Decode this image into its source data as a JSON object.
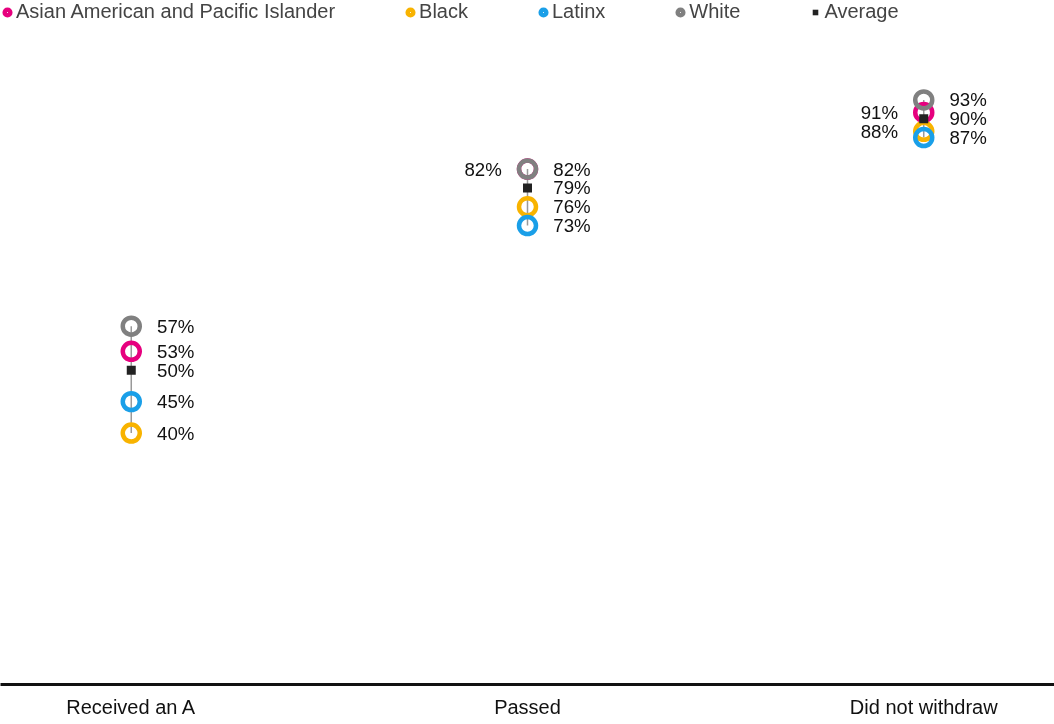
{
  "chart_data": {
    "type": "scatter",
    "categories": [
      "Received an A",
      "Passed",
      "Did not withdraw"
    ],
    "marker": "circle",
    "legend": "top",
    "grid": false,
    "tick_labels": "x",
    "series": [
      {
        "name": "Asian American and Pacific Islander",
        "color": "#e6007e",
        "values": [
          53,
          82,
          91
        ],
        "value_labels": [
          "53%",
          "82%",
          "91%"
        ]
      },
      {
        "name": "Black",
        "color": "#f8b300",
        "values": [
          40,
          76,
          88
        ],
        "value_labels": [
          "40%",
          "76%",
          "88%"
        ]
      },
      {
        "name": "Latinx",
        "color": "#1a9fe8",
        "values": [
          45,
          73,
          87
        ],
        "value_labels": [
          "45%",
          "73%",
          "87%"
        ]
      },
      {
        "name": "White",
        "color": "#808080",
        "values": [
          57,
          82,
          93
        ],
        "value_labels": [
          "57%",
          "82%",
          "93%"
        ]
      },
      {
        "name": "Average",
        "color": "#222222",
        "values": [
          50,
          79,
          90
        ],
        "value_labels": [
          "50%",
          "79%",
          "90%"
        ],
        "marker": "square"
      }
    ]
  }
}
